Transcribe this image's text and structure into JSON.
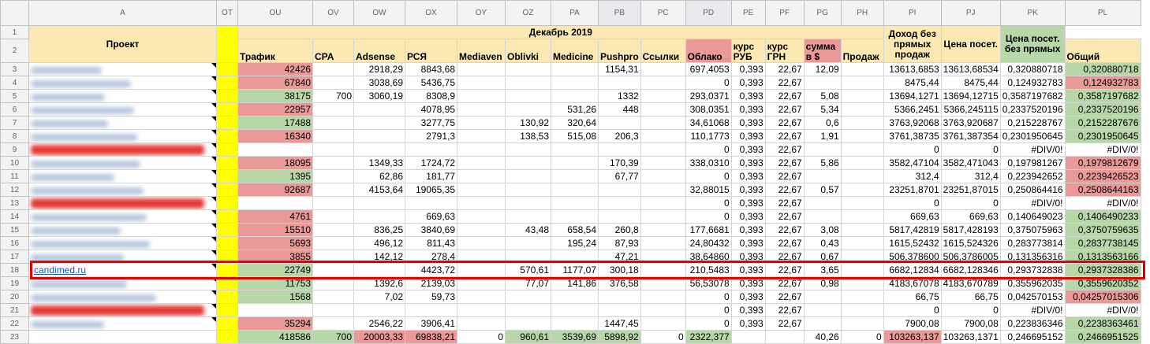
{
  "columns": [
    "A",
    "OT",
    "OU",
    "OV",
    "OW",
    "OX",
    "OY",
    "OZ",
    "PA",
    "PB",
    "PC",
    "PD",
    "PE",
    "PF",
    "PG",
    "PH",
    "PI",
    "PJ",
    "PK",
    "PL"
  ],
  "header": {
    "project": "Проект",
    "month": "Декабрь 2019",
    "traffic": "Трафик",
    "cpa": "CPA",
    "adsense": "Adsense",
    "rsya": "РСЯ",
    "mediaven": "Mediaven",
    "oblivki": "Oblivki",
    "medicine": "Medicine",
    "pushpro": "Pushpro",
    "links": "Ссылки",
    "cloud": "Облако",
    "rate_rub": "курс РУБ",
    "rate_uah": "курс ГРН",
    "sum_usd": "сумма в $",
    "sales": "Продаж",
    "total": "Общий",
    "income_no_direct": "Доход без прямых продаж",
    "price_visit": "Цена посет.",
    "price_visit_no_direct": "Цена посет. без прямых"
  },
  "rows": [
    {
      "n": "3",
      "name": "",
      "red": false,
      "ou": "42426",
      "ouc": "red",
      "ov": "",
      "ow": "2918,29",
      "ox": "8843,68",
      "oy": "",
      "oz": "",
      "pa": "",
      "pb": "1154,31",
      "pc": "",
      "pd": "697,4053",
      "pe": "0,393",
      "pf": "22,67",
      "pg": "12,09",
      "ph": "",
      "pi": "13613,6853",
      "pj": "13613,68534",
      "pk": "0,320880718",
      "pl": "0,320880718",
      "plc": "green"
    },
    {
      "n": "4",
      "name": "",
      "red": false,
      "ou": "67840",
      "ouc": "red",
      "ov": "",
      "ow": "3038,69",
      "ox": "5436,75",
      "oy": "",
      "oz": "",
      "pa": "",
      "pb": "",
      "pc": "",
      "pd": "0",
      "pe": "0,393",
      "pf": "22,67",
      "pg": "",
      "ph": "",
      "pi": "8475,44",
      "pj": "8475,44",
      "pk": "0,124932783",
      "pl": "0,124932783",
      "plc": "red"
    },
    {
      "n": "5",
      "name": "",
      "red": false,
      "ou": "38175",
      "ouc": "green",
      "ov": "700",
      "ow": "3060,19",
      "ox": "8308,9",
      "oy": "",
      "oz": "",
      "pa": "",
      "pb": "1332",
      "pc": "",
      "pd": "293,0371",
      "pe": "0,393",
      "pf": "22,67",
      "pg": "5,08",
      "ph": "",
      "pi": "13694,1271",
      "pj": "13694,12715",
      "pk": "0,3587197682",
      "pl": "0,3587197682",
      "plc": "green"
    },
    {
      "n": "6",
      "name": "",
      "red": false,
      "ou": "22957",
      "ouc": "red",
      "ov": "",
      "ow": "",
      "ox": "4078,95",
      "oy": "",
      "oz": "",
      "pa": "531,26",
      "pb": "448",
      "pc": "",
      "pd": "308,0351",
      "pe": "0,393",
      "pf": "22,67",
      "pg": "5,34",
      "ph": "",
      "pi": "5366,2451",
      "pj": "5366,245115",
      "pk": "0,2337520196",
      "pl": "0,2337520196",
      "plc": "green"
    },
    {
      "n": "7",
      "name": "",
      "red": false,
      "ou": "17488",
      "ouc": "green",
      "ov": "",
      "ow": "",
      "ox": "3277,75",
      "oy": "",
      "oz": "130,92",
      "pa": "320,64",
      "pb": "",
      "pc": "",
      "pd": "34,61068",
      "pe": "0,393",
      "pf": "22,67",
      "pg": "0,6",
      "ph": "",
      "pi": "3763,92068",
      "pj": "3763,920687",
      "pk": "0,215228767",
      "pl": "0,2152287676",
      "plc": "green"
    },
    {
      "n": "8",
      "name": "",
      "red": false,
      "ou": "16340",
      "ouc": "red",
      "ov": "",
      "ow": "",
      "ox": "2791,3",
      "oy": "",
      "oz": "138,53",
      "pa": "515,08",
      "pb": "206,3",
      "pc": "",
      "pd": "110,1773",
      "pe": "0,393",
      "pf": "22,67",
      "pg": "1,91",
      "ph": "",
      "pi": "3761,38735",
      "pj": "3761,387354",
      "pk": "0,2301950645",
      "pl": "0,2301950645",
      "plc": "green"
    },
    {
      "n": "9",
      "name": "",
      "red": true,
      "ou": "",
      "ouc": "",
      "ov": "",
      "ow": "",
      "ox": "",
      "oy": "",
      "oz": "",
      "pa": "",
      "pb": "",
      "pc": "",
      "pd": "0",
      "pe": "0,393",
      "pf": "22,67",
      "pg": "",
      "ph": "",
      "pi": "0",
      "pj": "0",
      "pk": "#DIV/0!",
      "pl": "#DIV/0!",
      "plc": ""
    },
    {
      "n": "10",
      "name": "",
      "red": false,
      "ou": "18095",
      "ouc": "red",
      "ov": "",
      "ow": "1349,33",
      "ox": "1724,72",
      "oy": "",
      "oz": "",
      "pa": "",
      "pb": "170,39",
      "pc": "",
      "pd": "338,0310",
      "pe": "0,393",
      "pf": "22,67",
      "pg": "5,86",
      "ph": "",
      "pi": "3582,47104",
      "pj": "3582,471043",
      "pk": "0,197981267",
      "pl": "0,1979812679",
      "plc": "red"
    },
    {
      "n": "11",
      "name": "",
      "red": false,
      "ou": "1395",
      "ouc": "green",
      "ov": "",
      "ow": "62,86",
      "ox": "181,77",
      "oy": "",
      "oz": "",
      "pa": "",
      "pb": "67,77",
      "pc": "",
      "pd": "0",
      "pe": "0,393",
      "pf": "22,67",
      "pg": "",
      "ph": "",
      "pi": "312,4",
      "pj": "312,4",
      "pk": "0,223942652",
      "pl": "0,2239426523",
      "plc": "red"
    },
    {
      "n": "12",
      "name": "",
      "red": false,
      "ou": "92687",
      "ouc": "red",
      "ov": "",
      "ow": "4153,64",
      "ox": "19065,35",
      "oy": "",
      "oz": "",
      "pa": "",
      "pb": "",
      "pc": "",
      "pd": "32,88015",
      "pe": "0,393",
      "pf": "22,67",
      "pg": "0,57",
      "ph": "",
      "pi": "23251,8701",
      "pj": "23251,87015",
      "pk": "0,250864416",
      "pl": "0,2508644163",
      "plc": "red"
    },
    {
      "n": "13",
      "name": "",
      "red": true,
      "ou": "",
      "ouc": "",
      "ov": "",
      "ow": "",
      "ox": "",
      "oy": "",
      "oz": "",
      "pa": "",
      "pb": "",
      "pc": "",
      "pd": "0",
      "pe": "0,393",
      "pf": "22,67",
      "pg": "",
      "ph": "",
      "pi": "0",
      "pj": "0",
      "pk": "#DIV/0!",
      "pl": "#DIV/0!",
      "plc": ""
    },
    {
      "n": "14",
      "name": "",
      "red": false,
      "ou": "4761",
      "ouc": "red",
      "ov": "",
      "ow": "",
      "ox": "669,63",
      "oy": "",
      "oz": "",
      "pa": "",
      "pb": "",
      "pc": "",
      "pd": "0",
      "pe": "0,393",
      "pf": "22,67",
      "pg": "",
      "ph": "",
      "pi": "669,63",
      "pj": "669,63",
      "pk": "0,140649023",
      "pl": "0,1406490233",
      "plc": "green"
    },
    {
      "n": "15",
      "name": "",
      "red": false,
      "ou": "15510",
      "ouc": "red",
      "ov": "",
      "ow": "836,25",
      "ox": "3840,69",
      "oy": "",
      "oz": "43,48",
      "pa": "658,54",
      "pb": "260,8",
      "pc": "",
      "pd": "177,6681",
      "pe": "0,393",
      "pf": "22,67",
      "pg": "3,08",
      "ph": "",
      "pi": "5817,42819",
      "pj": "5817,428193",
      "pk": "0,375075963",
      "pl": "0,3750759635",
      "plc": "green"
    },
    {
      "n": "16",
      "name": "",
      "red": false,
      "ou": "5693",
      "ouc": "red",
      "ov": "",
      "ow": "496,12",
      "ox": "811,43",
      "oy": "",
      "oz": "",
      "pa": "195,24",
      "pb": "87,93",
      "pc": "",
      "pd": "24,80432",
      "pe": "0,393",
      "pf": "22,67",
      "pg": "0,43",
      "ph": "",
      "pi": "1615,52432",
      "pj": "1615,524326",
      "pk": "0,283773814",
      "pl": "0,2837738145",
      "plc": "green"
    },
    {
      "n": "17",
      "name": "",
      "red": false,
      "ou": "3855",
      "ouc": "red",
      "ov": "",
      "ow": "142,12",
      "ox": "278,4",
      "oy": "",
      "oz": "",
      "pa": "",
      "pb": "47,21",
      "pc": "",
      "pd": "38,64860",
      "pe": "0,393",
      "pf": "22,67",
      "pg": "0,67",
      "ph": "",
      "pi": "506,378600",
      "pj": "506,3786005",
      "pk": "0,131356316",
      "pl": "0,1313563166",
      "plc": "green"
    },
    {
      "n": "18",
      "name": "candimed.ru",
      "red": false,
      "ou": "22749",
      "ouc": "green",
      "ov": "",
      "ow": "",
      "ox": "4423,72",
      "oy": "",
      "oz": "570,61",
      "pa": "1177,07",
      "pb": "300,18",
      "pc": "",
      "pd": "210,5483",
      "pe": "0,393",
      "pf": "22,67",
      "pg": "3,65",
      "ph": "",
      "pi": "6682,12834",
      "pj": "6682,128346",
      "pk": "0,293732838",
      "pl": "0,2937328386",
      "plc": "green"
    },
    {
      "n": "19",
      "name": "",
      "red": false,
      "ou": "11753",
      "ouc": "green",
      "ov": "",
      "ow": "1392,6",
      "ox": "2139,03",
      "oy": "",
      "oz": "77,07",
      "pa": "141,86",
      "pb": "376,58",
      "pc": "",
      "pd": "56,53078",
      "pe": "0,393",
      "pf": "22,67",
      "pg": "0,98",
      "ph": "",
      "pi": "4183,67078",
      "pj": "4183,670789",
      "pk": "0,355962035",
      "pl": "0,3559620352",
      "plc": "green"
    },
    {
      "n": "20",
      "name": "",
      "red": false,
      "ou": "1568",
      "ouc": "green",
      "ov": "",
      "ow": "7,02",
      "ox": "59,73",
      "oy": "",
      "oz": "",
      "pa": "",
      "pb": "",
      "pc": "",
      "pd": "0",
      "pe": "0,393",
      "pf": "22,67",
      "pg": "",
      "ph": "",
      "pi": "66,75",
      "pj": "66,75",
      "pk": "0,042570153",
      "pl": "0,04257015306",
      "plc": "red"
    },
    {
      "n": "21",
      "name": "",
      "red": true,
      "ou": "",
      "ouc": "",
      "ov": "",
      "ow": "",
      "ox": "",
      "oy": "",
      "oz": "",
      "pa": "",
      "pb": "",
      "pc": "",
      "pd": "0",
      "pe": "0,393",
      "pf": "22,67",
      "pg": "",
      "ph": "",
      "pi": "0",
      "pj": "0",
      "pk": "#DIV/0!",
      "pl": "#DIV/0!",
      "plc": ""
    },
    {
      "n": "22",
      "name": "",
      "red": false,
      "ou": "35294",
      "ouc": "red",
      "ov": "",
      "ow": "2546,22",
      "ox": "3906,41",
      "oy": "",
      "oz": "",
      "pa": "",
      "pb": "1447,45",
      "pc": "",
      "pd": "0",
      "pe": "0,393",
      "pf": "22,67",
      "pg": "",
      "ph": "",
      "pi": "7900,08",
      "pj": "7900,08",
      "pk": "0,223836346",
      "pl": "0,2238363461",
      "plc": "green"
    }
  ],
  "total_row": {
    "n": "23",
    "ou": "418586",
    "ov": "700",
    "ow": "20003,33",
    "ox": "69838,21",
    "oy": "0",
    "oz": "960,61",
    "pa": "3539,69",
    "pb": "5898,92",
    "pc": "0",
    "pd": "2322,377",
    "pe": "",
    "pf": "",
    "pg": "40,26",
    "ph": "0",
    "pi": "103263,137",
    "pj": "103263,1371",
    "pk": "0,246695152",
    "pl": "0,2466951525"
  },
  "colors": {
    "header_bg": "#fce8b2",
    "green": "#b7d7a8",
    "red": "#ea9999",
    "yellow": "#ffff00",
    "highlight": "#e00000"
  }
}
